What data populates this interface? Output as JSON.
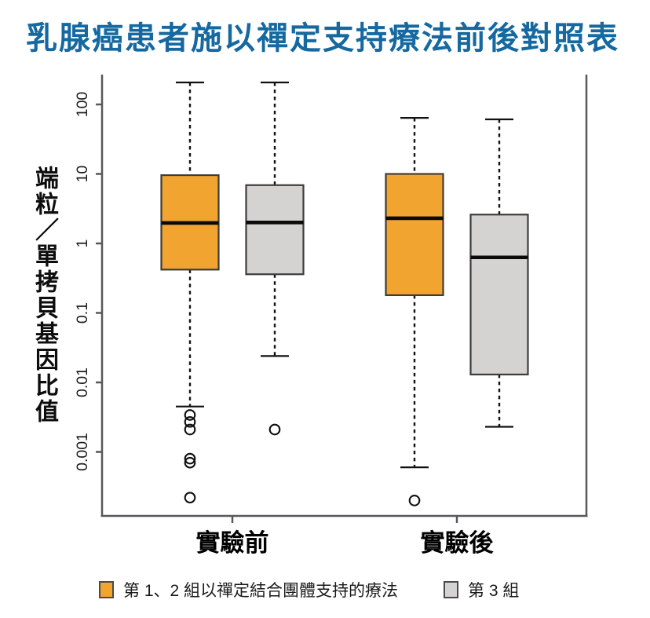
{
  "page": {
    "title": "乳腺癌患者施以禪定支持療法前後對照表"
  },
  "chart_data": {
    "type": "boxplot",
    "title": "乳腺癌患者施以禪定支持療法前後對照表",
    "y_scale": "log",
    "ylim": [
      0.0002,
      210
    ],
    "ylabel": "端粒／單拷貝基因比值",
    "yticks": [
      {
        "value": 100,
        "label": "100"
      },
      {
        "value": 10,
        "label": "10"
      },
      {
        "value": 1,
        "label": "1"
      },
      {
        "value": 0.1,
        "label": "0.1"
      },
      {
        "value": 0.01,
        "label": "0.01"
      },
      {
        "value": 0.001,
        "label": "0.001"
      }
    ],
    "categories": [
      "實驗前",
      "實驗後"
    ],
    "legend_position": "bottom",
    "grid": false,
    "series": [
      {
        "name": "第 1、2 組以禪定結合團體支持的療法",
        "color": "#F2A430",
        "boxes": [
          {
            "group": "實驗前",
            "whisker_low": 0.0045,
            "q1": 0.42,
            "median": 1.97,
            "q3": 9.6,
            "whisker_high": 207,
            "outliers": [
              0.0034,
              0.0027,
              0.0021,
              0.0008,
              0.0007,
              0.00022
            ]
          },
          {
            "group": "實驗後",
            "whisker_low": 0.0006,
            "q1": 0.18,
            "median": 2.3,
            "q3": 10,
            "whisker_high": 64,
            "outliers": [
              0.0002
            ]
          }
        ]
      },
      {
        "name": "第 3 組",
        "color": "#D5D3D1",
        "boxes": [
          {
            "group": "實驗前",
            "whisker_low": 0.024,
            "q1": 0.36,
            "median": 2.0,
            "q3": 6.9,
            "whisker_high": 207,
            "outliers": [
              0.0021
            ]
          },
          {
            "group": "實驗後",
            "whisker_low": 0.0023,
            "q1": 0.013,
            "median": 0.63,
            "q3": 2.6,
            "whisker_high": 61,
            "outliers": []
          }
        ]
      }
    ]
  }
}
